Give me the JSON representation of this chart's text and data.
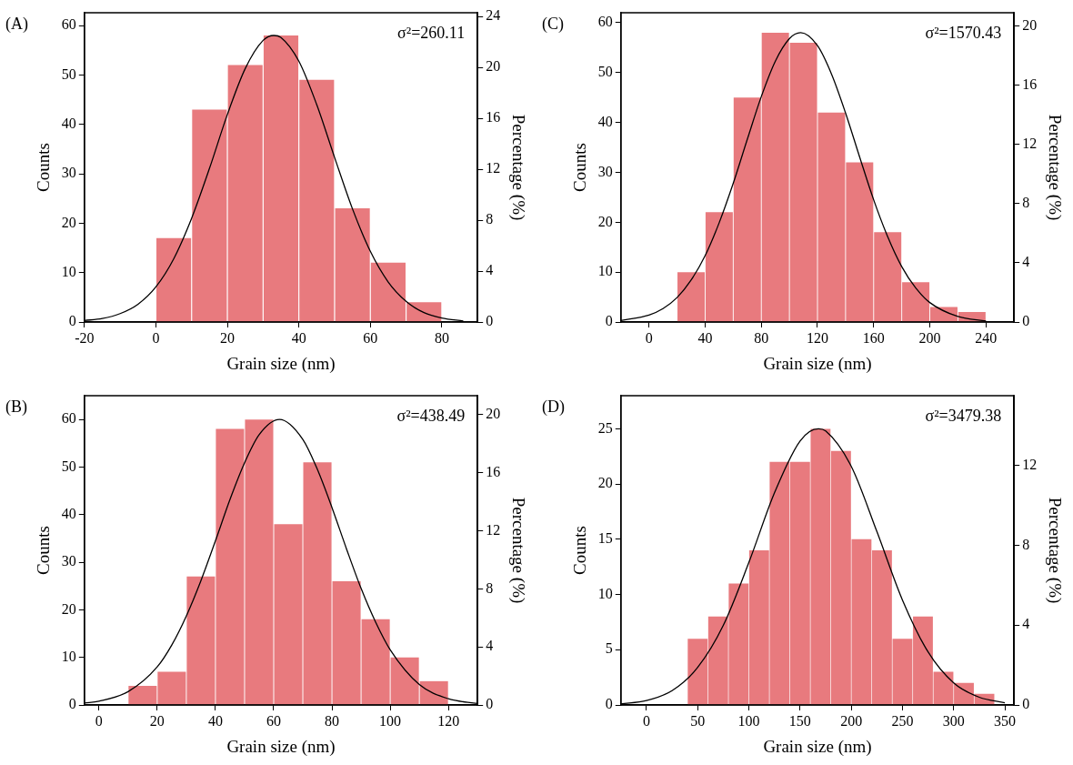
{
  "chart_data": [
    {
      "type": "histogram",
      "xlabel": "Grain size (nm)",
      "ylabel": "Counts",
      "y2label": "Percentage (%)",
      "annotations": [
        "(A)",
        "σ²=260.11"
      ],
      "xlim": [
        -20,
        90
      ],
      "xticks": [
        -20,
        0,
        20,
        40,
        60,
        80
      ],
      "ylim": [
        0,
        62.6
      ],
      "yticks": [
        0,
        10,
        20,
        30,
        40,
        50,
        60
      ],
      "y2lim": [
        0,
        24.3
      ],
      "y2ticks": [
        0,
        4,
        8,
        12,
        16,
        20,
        24
      ],
      "color": "#e87a7e",
      "bins": [
        0,
        10,
        20,
        30,
        40,
        50,
        60,
        70,
        80
      ],
      "values": [
        17,
        43,
        52,
        58,
        49,
        23,
        12,
        4
      ],
      "series": [
        {
          "type": "line",
          "color": "#000000",
          "x": [
            -20,
            -15,
            -10,
            -5,
            0,
            5,
            10,
            15,
            20,
            25,
            30,
            33,
            35,
            40,
            45,
            50,
            55,
            60,
            65,
            70,
            75,
            80,
            86
          ],
          "values": [
            0.3,
            0.7,
            1.7,
            3.6,
            7.1,
            12.8,
            21,
            31.1,
            42,
            51.3,
            57,
            58,
            57.6,
            52.8,
            44,
            33.3,
            22.9,
            14.3,
            8.1,
            4.2,
            1.9,
            0.8,
            0.2
          ]
        }
      ]
    },
    {
      "type": "histogram",
      "xlabel": "Grain size (nm)",
      "ylabel": "Counts",
      "y2label": "Percentage (%)",
      "annotations": [
        "(C)",
        "σ²=1570.43"
      ],
      "xlim": [
        -20,
        260
      ],
      "xticks": [
        0,
        40,
        80,
        120,
        160,
        200,
        240
      ],
      "ylim": [
        0,
        62
      ],
      "yticks": [
        0,
        10,
        20,
        30,
        40,
        50,
        60
      ],
      "y2lim": [
        0,
        20.9
      ],
      "y2ticks": [
        0,
        4,
        8,
        12,
        16,
        20
      ],
      "color": "#e87a7e",
      "bins": [
        20,
        40,
        60,
        80,
        100,
        120,
        140,
        160,
        180,
        200,
        220,
        240
      ],
      "values": [
        10,
        22,
        45,
        58,
        56,
        42,
        32,
        18,
        8,
        3,
        2
      ],
      "series": [
        {
          "type": "line",
          "color": "#000000",
          "x": [
            -20,
            0,
            10,
            20,
            30,
            40,
            50,
            60,
            70,
            80,
            90,
            100,
            108,
            120,
            130,
            140,
            150,
            160,
            170,
            180,
            190,
            200,
            220,
            240
          ],
          "values": [
            0.3,
            1.4,
            2.7,
            4.9,
            8.4,
            13.3,
            19.9,
            27.8,
            36.6,
            45.2,
            52.3,
            56.8,
            58,
            55.4,
            49.7,
            41.9,
            33.1,
            24.5,
            17.1,
            11.1,
            6.8,
            3.9,
            1.1,
            0.2
          ]
        }
      ]
    },
    {
      "type": "histogram",
      "xlabel": "Grain size (nm)",
      "ylabel": "Counts",
      "y2label": "Percentage (%)",
      "annotations": [
        "(B)",
        "σ²=438.49"
      ],
      "xlim": [
        -5,
        130
      ],
      "xticks": [
        0,
        20,
        40,
        60,
        80,
        100,
        120
      ],
      "ylim": [
        0,
        65
      ],
      "yticks": [
        0,
        10,
        20,
        30,
        40,
        50,
        60
      ],
      "y2lim": [
        0,
        21.3
      ],
      "y2ticks": [
        0,
        4,
        8,
        12,
        16,
        20
      ],
      "color": "#e87a7e",
      "bins": [
        10,
        20,
        30,
        40,
        50,
        60,
        70,
        80,
        90,
        100,
        110,
        120
      ],
      "values": [
        4,
        7,
        27,
        58,
        60,
        38,
        51,
        26,
        18,
        10,
        5
      ],
      "series": [
        {
          "type": "line",
          "color": "#000000",
          "x": [
            -5,
            0,
            10,
            20,
            25,
            30,
            35,
            40,
            45,
            50,
            55,
            62,
            70,
            75,
            80,
            85,
            90,
            95,
            100,
            110,
            120,
            130
          ],
          "values": [
            0.4,
            0.8,
            2.8,
            8,
            12.6,
            18.7,
            26.1,
            34.5,
            43.2,
            50.9,
            56.8,
            60,
            55.8,
            49.5,
            41.5,
            32.8,
            24.5,
            17.4,
            11.6,
            4.3,
            1.3,
            0.3
          ]
        }
      ]
    },
    {
      "type": "histogram",
      "xlabel": "Grain size (nm)",
      "ylabel": "Counts",
      "y2label": "Percentage (%)",
      "annotations": [
        "(D)",
        "σ²=3479.38"
      ],
      "xlim": [
        -25,
        359
      ],
      "xticks": [
        0,
        50,
        100,
        150,
        200,
        250,
        300,
        350
      ],
      "ylim": [
        0,
        28
      ],
      "yticks": [
        0,
        5,
        10,
        15,
        20,
        25
      ],
      "y2lim": [
        0,
        15.5
      ],
      "y2ticks": [
        0,
        4,
        8,
        12
      ],
      "color": "#e87a7e",
      "bins": [
        40,
        60,
        80,
        100,
        120,
        140,
        160,
        180,
        200,
        220,
        240,
        260,
        280,
        300,
        320,
        340
      ],
      "values": [
        6,
        8,
        11,
        14,
        22,
        22,
        25,
        23,
        15,
        14,
        6,
        8,
        3,
        2,
        1
      ],
      "series": [
        {
          "type": "line",
          "color": "#000000",
          "x": [
            -25,
            0,
            25,
            50,
            75,
            100,
            125,
            150,
            168,
            175,
            200,
            225,
            250,
            275,
            300,
            325,
            350
          ],
          "values": [
            0.1,
            0.4,
            1.3,
            3.4,
            7.2,
            12.9,
            19.2,
            23.9,
            25,
            24.8,
            21.6,
            15.7,
            9.5,
            4.8,
            2,
            0.7,
            0.2
          ]
        }
      ]
    }
  ]
}
